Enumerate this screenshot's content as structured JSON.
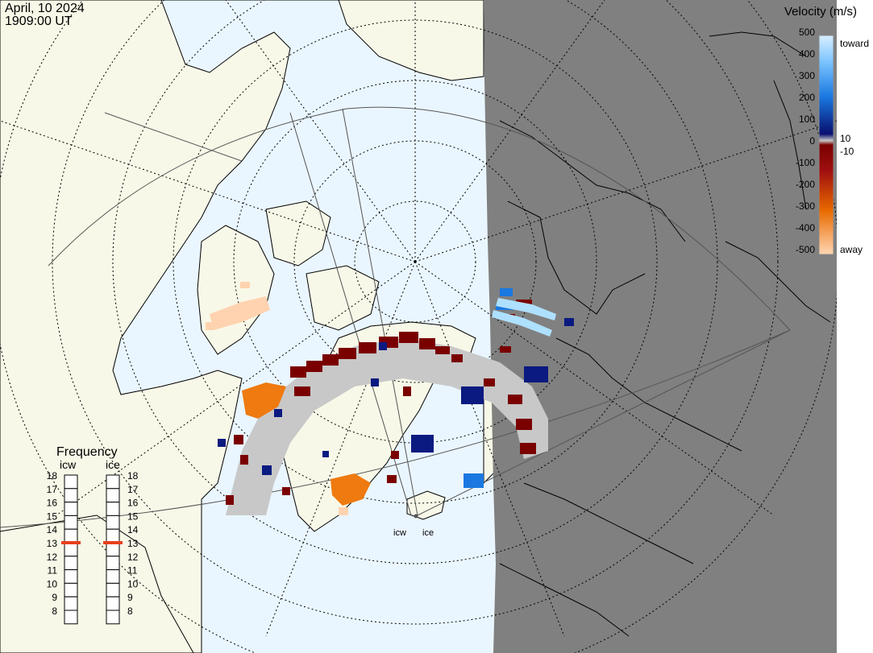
{
  "header": {
    "date": "April, 10 2024",
    "time": "1909:00 UT"
  },
  "legend": {
    "title": "Velocity (m/s)",
    "ticks_left": [
      "500",
      "400",
      "300",
      "200",
      "100",
      "0",
      "-100",
      "-200",
      "-300",
      "-400",
      "-500"
    ],
    "label_toward": "toward",
    "label_10": "10",
    "label_minus10": "-10",
    "label_away": "away",
    "colors": {
      "toward_light": "#cfe9ff",
      "toward_mid": "#2e8ee8",
      "toward_dark": "#0a1a80",
      "away_dark": "#7a0000",
      "away_mid": "#e05a00",
      "away_light": "#ffd6b0",
      "ground_scatter": "#c8c8c8"
    }
  },
  "frequency": {
    "title": "Frequency",
    "radars": [
      {
        "code": "icw",
        "value_mhz": 13
      },
      {
        "code": "ice",
        "value_mhz": 13
      }
    ],
    "scale": [
      "18",
      "17",
      "16",
      "15",
      "14",
      "13",
      "12",
      "11",
      "10",
      "9",
      "8"
    ]
  },
  "stations": [
    {
      "code": "icw"
    },
    {
      "code": "ice"
    }
  ],
  "map": {
    "ocean_color": "#eaf6ff",
    "land_color": "#f8f8e8",
    "night_color": "#808080",
    "coast_color": "#000000"
  }
}
